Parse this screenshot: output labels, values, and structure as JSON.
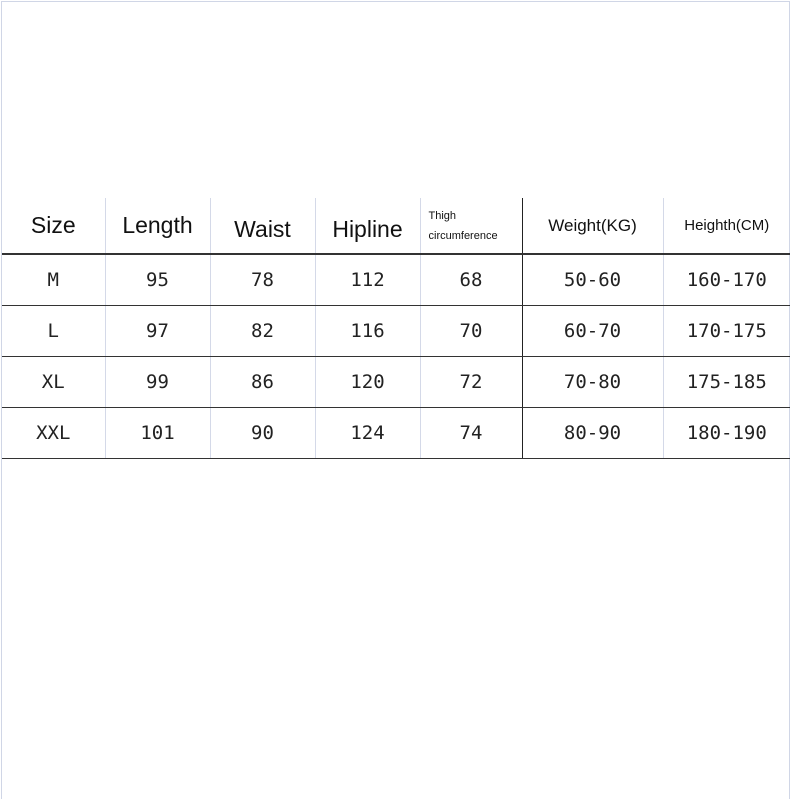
{
  "table": {
    "headers": [
      "Size",
      "Length",
      "Waist",
      "Hipline",
      "Thigh circumference",
      "Weight(KG)",
      "Heighth(CM)"
    ],
    "header_thigh_line1": "Thigh",
    "header_thigh_line2": "circumference",
    "rows": [
      [
        "M",
        "95",
        "78",
        "112",
        "68",
        "50-60",
        "160-170"
      ],
      [
        "L",
        "97",
        "82",
        "116",
        "70",
        "60-70",
        "170-175"
      ],
      [
        "XL",
        "99",
        "86",
        "120",
        "72",
        "70-80",
        "175-185"
      ],
      [
        "XXL",
        "101",
        "90",
        "124",
        "74",
        "80-90",
        "180-190"
      ]
    ]
  }
}
